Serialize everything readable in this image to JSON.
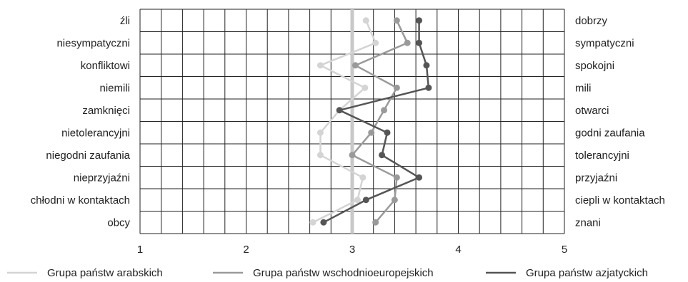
{
  "chart_data": {
    "type": "line",
    "orientation": "horizontal",
    "x_ticks": [
      "1",
      "2",
      "3",
      "4",
      "5"
    ],
    "xlim": [
      1,
      5
    ],
    "x_minor_step": 0.2,
    "reference_line": 3,
    "grid": true,
    "legend_position": "bottom",
    "left_labels": [
      "źli",
      "niesympatyczni",
      "konfliktowi",
      "niemili",
      "zamknięci",
      "nietolerancyjni",
      "niegodni zaufania",
      "nieprzyjaźni",
      "chłodni w kontaktach",
      "obcy"
    ],
    "right_labels": [
      "dobrzy",
      "sympatyczni",
      "spokojni",
      "mili",
      "otwarci",
      "godni zaufania",
      "tolerancyjni",
      "przyjaźni",
      "ciepli w kontaktach",
      "znani"
    ],
    "series": [
      {
        "name": "Grupa państw arabskich",
        "color": "#d4d4d4",
        "values": [
          3.13,
          3.22,
          2.7,
          3.12,
          2.88,
          2.7,
          2.7,
          3.1,
          3.05,
          2.63
        ]
      },
      {
        "name": "Grupa państw wschodnioeuropejskich",
        "color": "#9a9a9a",
        "values": [
          3.42,
          3.52,
          3.03,
          3.42,
          3.3,
          3.18,
          3.0,
          3.42,
          3.4,
          3.22
        ]
      },
      {
        "name": "Grupa państw azjatyckich",
        "color": "#555555",
        "values": [
          3.63,
          3.63,
          3.7,
          3.72,
          2.88,
          3.33,
          3.28,
          3.63,
          3.13,
          2.73
        ]
      }
    ]
  }
}
